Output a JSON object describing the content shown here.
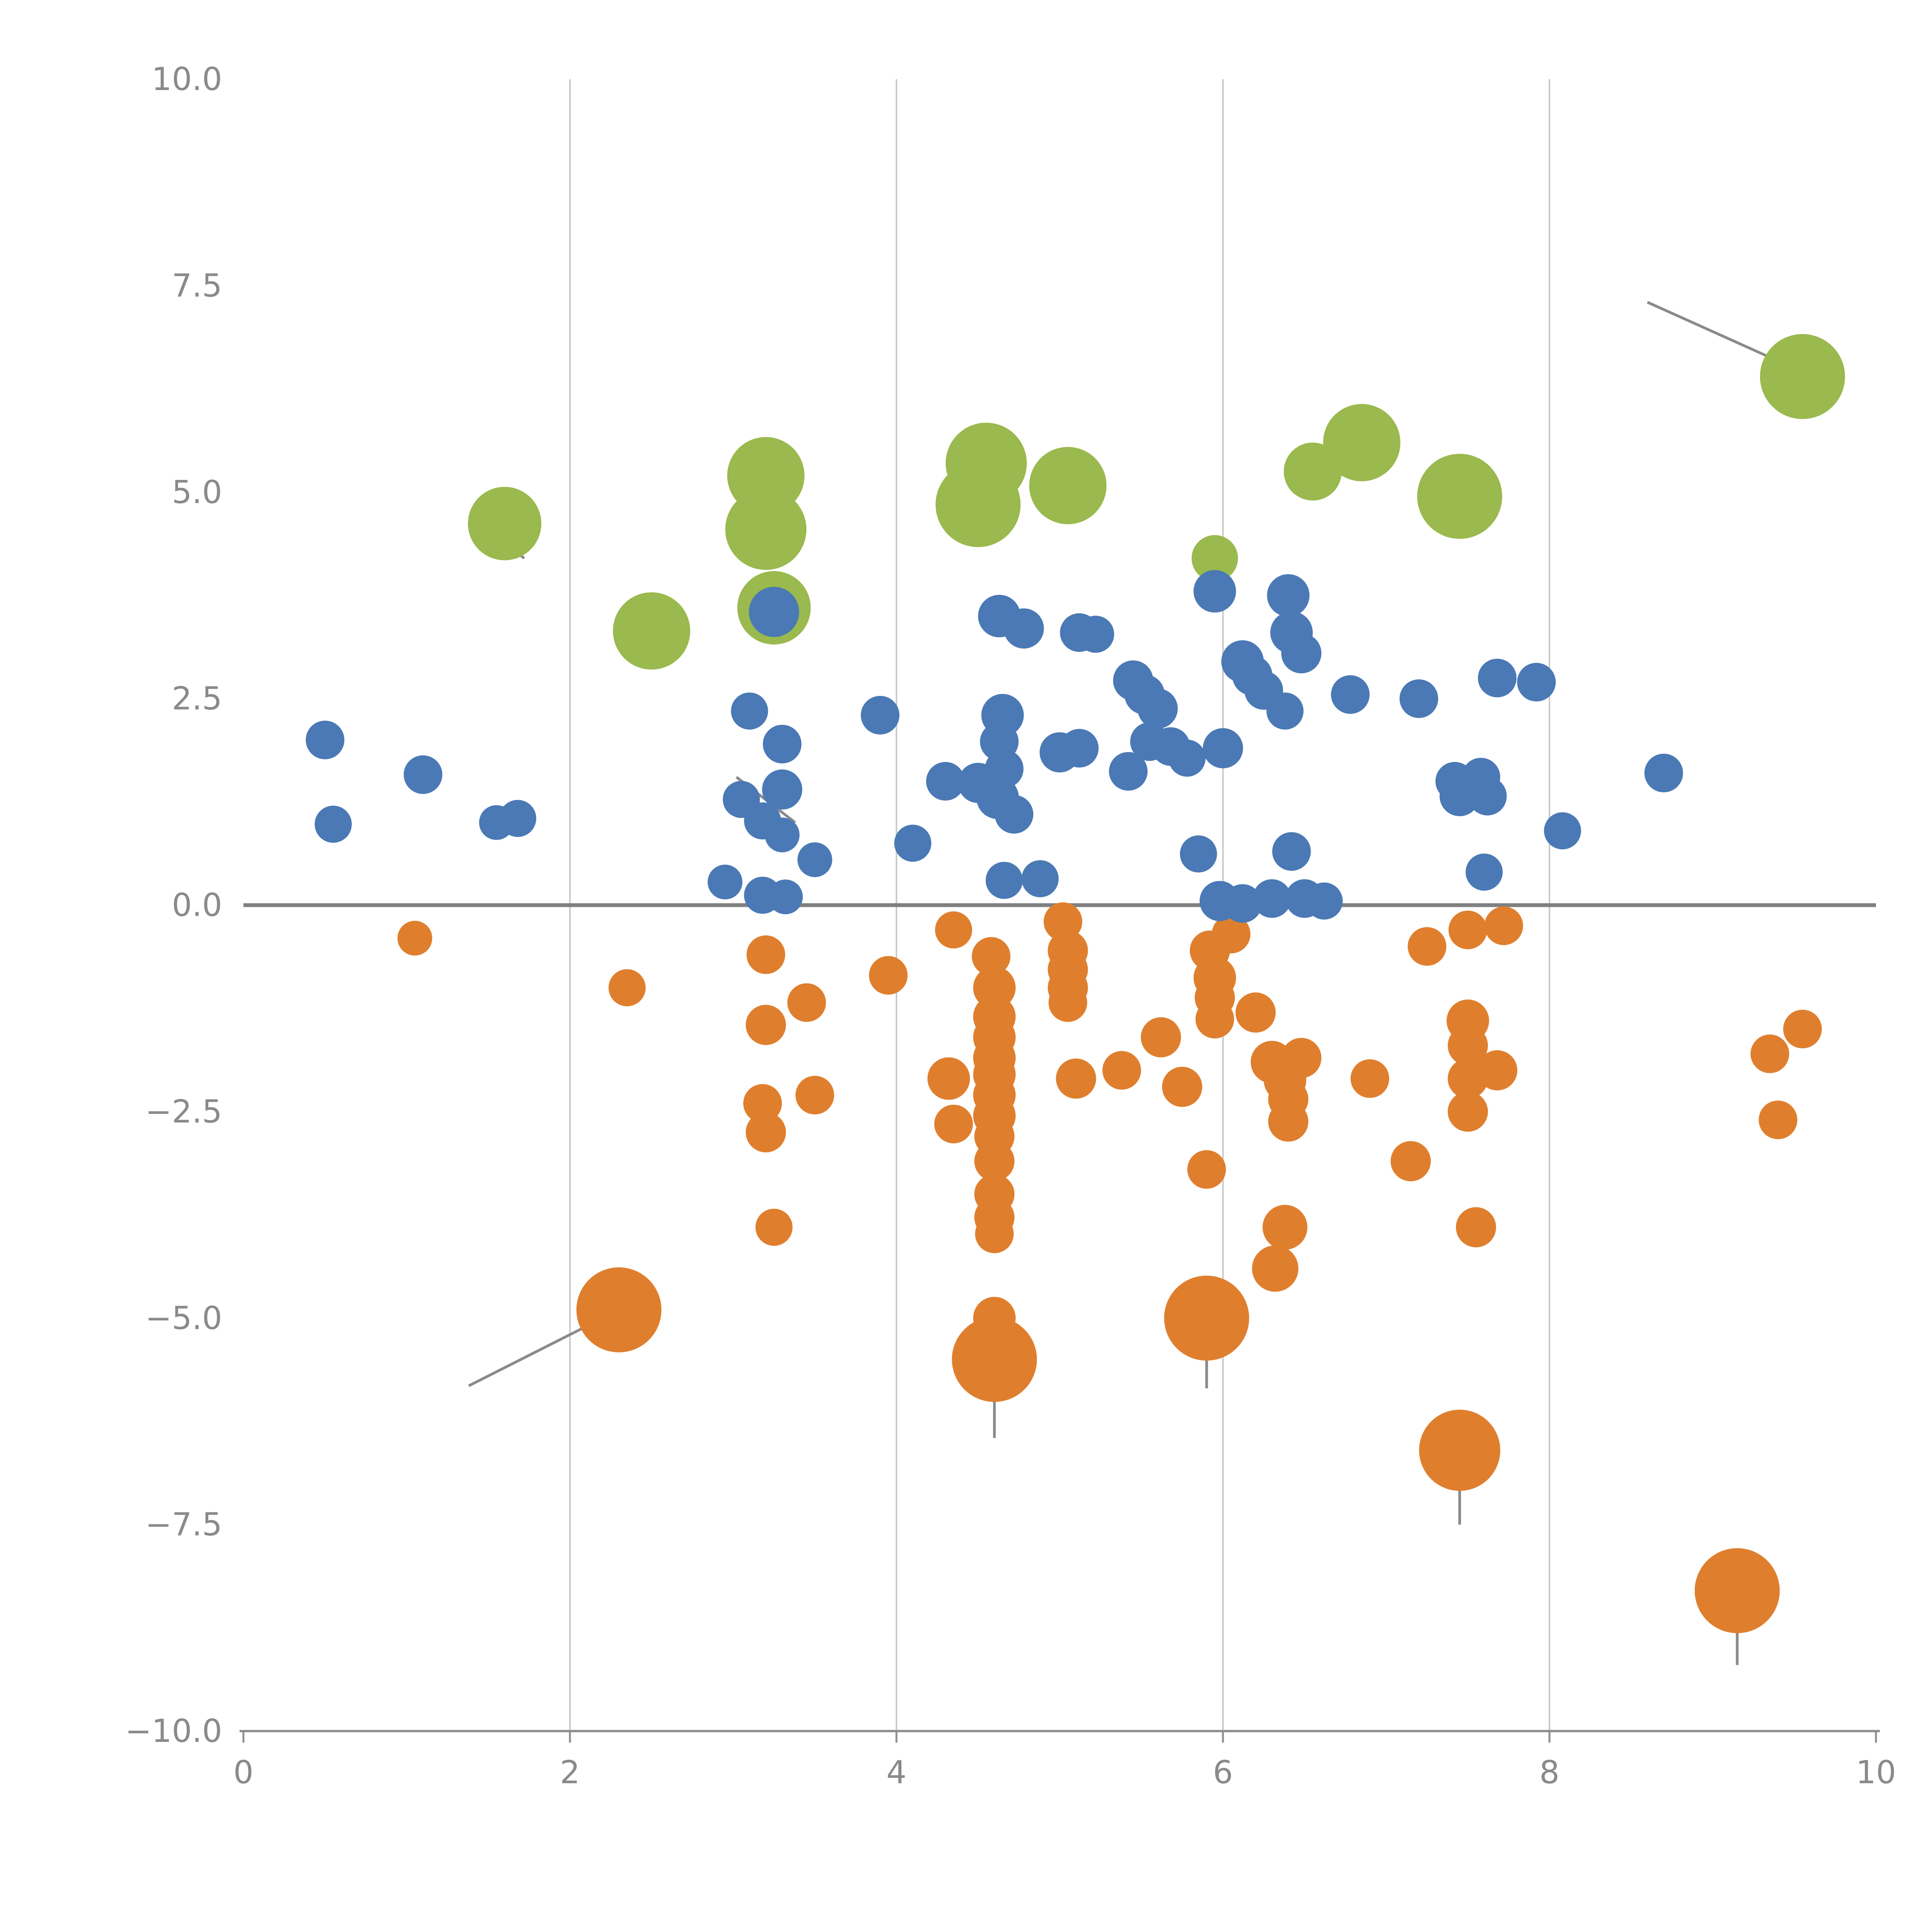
{
  "page": {
    "background": "#ffffff"
  },
  "chart_data": {
    "type": "scatter",
    "title": "",
    "xlabel": "",
    "ylabel": "",
    "xlim": [
      0,
      10
    ],
    "ylim": [
      -10,
      10
    ],
    "x_ticks": [
      {
        "value": 0,
        "label": "0"
      },
      {
        "value": 2,
        "label": "2"
      },
      {
        "value": 4,
        "label": "4"
      },
      {
        "value": 6,
        "label": "6"
      },
      {
        "value": 8,
        "label": "8"
      },
      {
        "value": 10,
        "label": "10"
      }
    ],
    "y_ticks": [
      {
        "value": 10,
        "label": "10.0"
      },
      {
        "value": 7.5,
        "label": "7.5"
      },
      {
        "value": 5,
        "label": "5.0"
      },
      {
        "value": 2.5,
        "label": "2.5"
      },
      {
        "value": 0,
        "label": "0.0"
      },
      {
        "value": -2.5,
        "label": "−2.5"
      },
      {
        "value": -5,
        "label": "−5.0"
      },
      {
        "value": -7.5,
        "label": "−7.5"
      },
      {
        "value": -10,
        "label": "−10.0"
      }
    ],
    "grid": {
      "x_lines": [
        2,
        4,
        6,
        8
      ],
      "color": "#c9c9c9",
      "width": 4
    },
    "zero_line": {
      "y": 0,
      "color": "#808080",
      "width": 10
    },
    "axis_color": "#8f8f8f",
    "tick_label_color": "#8a8a8a",
    "tick_label_font_px": 82,
    "legend": "none",
    "point_format": "[x, y, radius_px]",
    "series": [
      {
        "name": "green-series",
        "color": "#9ab94e",
        "points": [
          [
            1.6,
            4.62,
            95
          ],
          [
            2.5,
            3.32,
            100
          ],
          [
            3.2,
            5.2,
            100
          ],
          [
            3.2,
            4.55,
            105
          ],
          [
            3.25,
            3.6,
            95
          ],
          [
            4.55,
            5.35,
            105
          ],
          [
            4.5,
            4.85,
            110
          ],
          [
            5.05,
            5.08,
            100
          ],
          [
            5.95,
            4.2,
            60
          ],
          [
            6.55,
            5.25,
            75
          ],
          [
            6.85,
            5.6,
            100
          ],
          [
            7.45,
            4.95,
            110
          ],
          [
            9.55,
            6.4,
            110
          ]
        ]
      },
      {
        "name": "orange-series",
        "color": "#df7f2e",
        "points": [
          [
            1.05,
            -0.4,
            45
          ],
          [
            2.35,
            -1.0,
            48
          ],
          [
            2.3,
            -4.9,
            110
          ],
          [
            3.2,
            -0.6,
            50
          ],
          [
            3.2,
            -1.45,
            52
          ],
          [
            3.18,
            -2.4,
            50
          ],
          [
            3.2,
            -2.75,
            52
          ],
          [
            3.25,
            -3.9,
            48
          ],
          [
            3.45,
            -1.18,
            50
          ],
          [
            3.5,
            -2.3,
            50
          ],
          [
            3.95,
            -0.85,
            50
          ],
          [
            4.32,
            -2.1,
            55
          ],
          [
            4.35,
            -2.65,
            50
          ],
          [
            4.35,
            -0.3,
            48
          ],
          [
            4.58,
            -0.62,
            50
          ],
          [
            4.6,
            -1.0,
            55
          ],
          [
            4.6,
            -1.35,
            55
          ],
          [
            4.6,
            -1.6,
            55
          ],
          [
            4.6,
            -1.85,
            55
          ],
          [
            4.6,
            -2.05,
            55
          ],
          [
            4.6,
            -2.3,
            55
          ],
          [
            4.6,
            -2.55,
            55
          ],
          [
            4.6,
            -2.8,
            52
          ],
          [
            4.6,
            -3.1,
            52
          ],
          [
            4.6,
            -3.5,
            52
          ],
          [
            4.6,
            -3.78,
            52
          ],
          [
            4.6,
            -3.98,
            50
          ],
          [
            4.6,
            -5.0,
            55
          ],
          [
            4.6,
            -5.5,
            110
          ],
          [
            5.02,
            -0.2,
            50
          ],
          [
            5.05,
            -0.55,
            52
          ],
          [
            5.05,
            -0.78,
            52
          ],
          [
            5.05,
            -1.0,
            52
          ],
          [
            5.05,
            -1.18,
            50
          ],
          [
            5.1,
            -2.1,
            52
          ],
          [
            5.38,
            -2.0,
            50
          ],
          [
            5.62,
            -1.6,
            52
          ],
          [
            5.75,
            -2.2,
            52
          ],
          [
            5.9,
            -3.2,
            50
          ],
          [
            5.92,
            -0.55,
            52
          ],
          [
            5.95,
            -0.88,
            55
          ],
          [
            5.95,
            -1.12,
            52
          ],
          [
            5.95,
            -1.38,
            50
          ],
          [
            5.9,
            -5.0,
            110
          ],
          [
            6.05,
            -0.35,
            50
          ],
          [
            6.2,
            -1.3,
            52
          ],
          [
            6.3,
            -1.9,
            55
          ],
          [
            6.38,
            -2.12,
            55
          ],
          [
            6.4,
            -2.35,
            52
          ],
          [
            6.4,
            -2.62,
            52
          ],
          [
            6.48,
            -1.85,
            52
          ],
          [
            6.38,
            -3.9,
            58
          ],
          [
            6.32,
            -4.4,
            60
          ],
          [
            6.9,
            -2.1,
            50
          ],
          [
            7.15,
            -3.1,
            52
          ],
          [
            7.25,
            -0.5,
            50
          ],
          [
            7.5,
            -0.3,
            50
          ],
          [
            7.5,
            -1.4,
            55
          ],
          [
            7.5,
            -1.7,
            52
          ],
          [
            7.5,
            -2.1,
            52
          ],
          [
            7.5,
            -2.5,
            52
          ],
          [
            7.55,
            -3.9,
            52
          ],
          [
            7.68,
            -2.0,
            52
          ],
          [
            7.72,
            -0.25,
            50
          ],
          [
            7.45,
            -6.6,
            105
          ],
          [
            9.15,
            -8.3,
            110
          ],
          [
            9.35,
            -1.8,
            50
          ],
          [
            9.4,
            -2.6,
            50
          ],
          [
            9.55,
            -1.5,
            50
          ]
        ]
      },
      {
        "name": "blue-series",
        "color": "#4a79b5",
        "points": [
          [
            0.5,
            2.0,
            50
          ],
          [
            0.55,
            0.98,
            48
          ],
          [
            1.1,
            1.58,
            50
          ],
          [
            1.55,
            1.0,
            45
          ],
          [
            1.68,
            1.05,
            48
          ],
          [
            3.25,
            3.55,
            65
          ],
          [
            3.1,
            2.35,
            48
          ],
          [
            3.3,
            1.95,
            50
          ],
          [
            3.05,
            1.28,
            48
          ],
          [
            3.3,
            1.4,
            52
          ],
          [
            3.18,
            1.02,
            48
          ],
          [
            3.3,
            0.85,
            45
          ],
          [
            2.95,
            0.28,
            45
          ],
          [
            3.18,
            0.12,
            48
          ],
          [
            3.32,
            0.1,
            45
          ],
          [
            3.5,
            0.55,
            45
          ],
          [
            3.9,
            2.3,
            50
          ],
          [
            4.1,
            0.75,
            48
          ],
          [
            4.3,
            1.5,
            50
          ],
          [
            4.5,
            1.48,
            52
          ],
          [
            4.62,
            1.3,
            55
          ],
          [
            4.65,
            2.3,
            55
          ],
          [
            4.63,
            1.98,
            50
          ],
          [
            4.66,
            1.65,
            50
          ],
          [
            4.72,
            1.1,
            50
          ],
          [
            4.66,
            0.3,
            48
          ],
          [
            4.88,
            0.32,
            48
          ],
          [
            4.63,
            3.5,
            55
          ],
          [
            4.78,
            3.35,
            52
          ],
          [
            5.0,
            1.85,
            52
          ],
          [
            5.12,
            1.9,
            50
          ],
          [
            5.12,
            3.3,
            50
          ],
          [
            5.22,
            3.28,
            48
          ],
          [
            5.42,
            1.62,
            50
          ],
          [
            5.45,
            2.72,
            52
          ],
          [
            5.52,
            2.55,
            52
          ],
          [
            5.6,
            2.38,
            52
          ],
          [
            5.55,
            1.98,
            50
          ],
          [
            5.68,
            1.92,
            50
          ],
          [
            5.78,
            1.78,
            48
          ],
          [
            5.85,
            0.62,
            48
          ],
          [
            5.95,
            3.8,
            55
          ],
          [
            6.0,
            1.9,
            52
          ],
          [
            6.12,
            2.95,
            55
          ],
          [
            6.18,
            2.78,
            52
          ],
          [
            6.25,
            2.6,
            50
          ],
          [
            6.4,
            3.75,
            55
          ],
          [
            6.42,
            3.3,
            55
          ],
          [
            6.48,
            3.05,
            52
          ],
          [
            6.38,
            2.35,
            48
          ],
          [
            6.42,
            0.65,
            50
          ],
          [
            5.98,
            0.05,
            52
          ],
          [
            6.12,
            0.02,
            50
          ],
          [
            6.3,
            0.08,
            50
          ],
          [
            6.5,
            0.08,
            50
          ],
          [
            6.62,
            0.05,
            48
          ],
          [
            6.78,
            2.55,
            50
          ],
          [
            7.2,
            2.5,
            50
          ],
          [
            7.42,
            1.5,
            50
          ],
          [
            7.45,
            1.32,
            52
          ],
          [
            7.58,
            1.55,
            50
          ],
          [
            7.62,
            1.32,
            50
          ],
          [
            7.6,
            0.4,
            48
          ],
          [
            7.68,
            2.75,
            50
          ],
          [
            7.92,
            2.7,
            50
          ],
          [
            8.08,
            0.9,
            48
          ],
          [
            8.7,
            1.6,
            50
          ]
        ]
      }
    ],
    "tails": {
      "color": "#8a8a8a",
      "width": 7,
      "segment_format": "[x1, y1, x2, y2]",
      "segments": [
        [
          8.6,
          7.3,
          9.5,
          6.5
        ],
        [
          1.38,
          -5.82,
          2.25,
          -4.95
        ],
        [
          4.6,
          -5.55,
          4.6,
          -6.45
        ],
        [
          5.9,
          -5.05,
          5.9,
          -5.85
        ],
        [
          7.45,
          -6.65,
          7.45,
          -7.5
        ],
        [
          9.15,
          -8.35,
          9.15,
          -9.2
        ],
        [
          3.02,
          1.55,
          3.38,
          1.0
        ],
        [
          1.55,
          4.45,
          1.72,
          4.2
        ]
      ]
    }
  }
}
